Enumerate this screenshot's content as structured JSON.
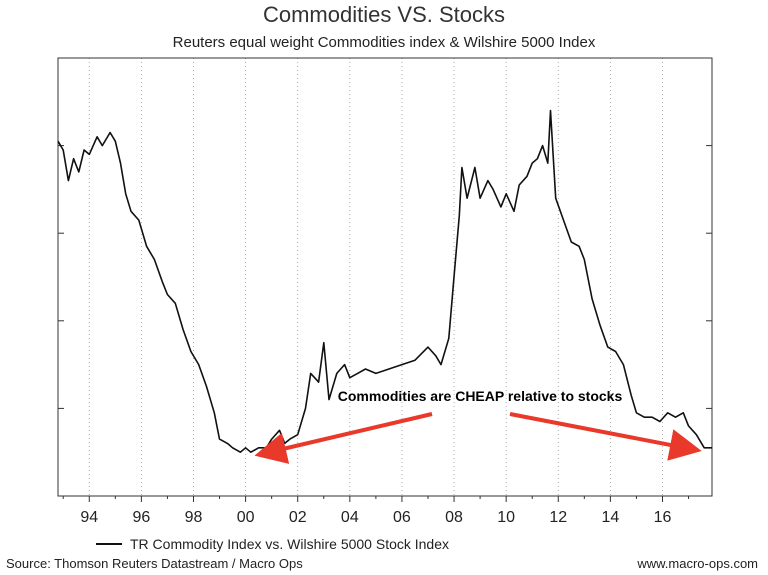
{
  "chart_data": {
    "type": "line",
    "title": "Commodities VS. Stocks",
    "subtitle": "Reuters equal weight Commodities index & Wilshire 5000 Index",
    "xlabel": "",
    "ylabel": "",
    "xlim": [
      1992.8,
      2017.9
    ],
    "ylim": [
      0,
      100
    ],
    "grid": "vertical dotted",
    "x_ticks": [
      1994,
      1996,
      1998,
      2000,
      2002,
      2004,
      2006,
      2008,
      2010,
      2012,
      2014,
      2016
    ],
    "x_tick_labels": [
      "94",
      "96",
      "98",
      "00",
      "02",
      "04",
      "06",
      "08",
      "10",
      "12",
      "14",
      "16"
    ],
    "legend_position": "bottom-left",
    "series": [
      {
        "name": "TR Commodity Index vs. Wilshire 5000 Stock Index",
        "color": "#111111",
        "x": [
          1992.8,
          1993.0,
          1993.2,
          1993.4,
          1993.6,
          1993.8,
          1994.0,
          1994.3,
          1994.5,
          1994.8,
          1995.0,
          1995.2,
          1995.4,
          1995.6,
          1995.9,
          1996.2,
          1996.5,
          1996.8,
          1997.0,
          1997.3,
          1997.6,
          1997.9,
          1998.2,
          1998.5,
          1998.8,
          1999.0,
          1999.3,
          1999.5,
          1999.8,
          2000.0,
          2000.2,
          2000.5,
          2000.8,
          2001.0,
          2001.3,
          2001.5,
          2001.7,
          2002.0,
          2002.3,
          2002.5,
          2002.8,
          2003.0,
          2003.2,
          2003.5,
          2003.8,
          2004.0,
          2004.3,
          2004.6,
          2005.0,
          2005.5,
          2006.0,
          2006.5,
          2007.0,
          2007.3,
          2007.5,
          2007.8,
          2008.0,
          2008.2,
          2008.3,
          2008.5,
          2008.8,
          2009.0,
          2009.3,
          2009.5,
          2009.8,
          2010.0,
          2010.3,
          2010.5,
          2010.8,
          2011.0,
          2011.2,
          2011.4,
          2011.6,
          2011.7,
          2011.9,
          2012.2,
          2012.5,
          2012.8,
          2013.0,
          2013.3,
          2013.6,
          2013.9,
          2014.2,
          2014.5,
          2014.8,
          2015.0,
          2015.3,
          2015.6,
          2015.9,
          2016.2,
          2016.5,
          2016.8,
          2017.0,
          2017.3,
          2017.6,
          2017.9
        ],
        "values": [
          81,
          79,
          72,
          77,
          74,
          79,
          78,
          82,
          80,
          83,
          81,
          76,
          69,
          65,
          63,
          57,
          54,
          49,
          46,
          44,
          38,
          33,
          30,
          25,
          19,
          13,
          12,
          11,
          10,
          11,
          10,
          11,
          11,
          13,
          15,
          12,
          13,
          14,
          20,
          28,
          26,
          35,
          22,
          28,
          30,
          27,
          28,
          29,
          28,
          29,
          30,
          31,
          34,
          32,
          30,
          36,
          50,
          64,
          75,
          68,
          75,
          68,
          72,
          70,
          66,
          69,
          65,
          71,
          73,
          76,
          77,
          80,
          76,
          88,
          68,
          63,
          58,
          57,
          54,
          45,
          39,
          34,
          33,
          30,
          23,
          19,
          18,
          18,
          17,
          19,
          18,
          19,
          16,
          14,
          11,
          11
        ]
      }
    ],
    "annotations": [
      {
        "text": "Commodities are CHEAP relative to stocks"
      }
    ]
  },
  "legend": {
    "label": "TR Commodity Index vs. Wilshire 5000 Stock Index"
  },
  "footer": {
    "source": "Source: Thomson Reuters Datastream / Macro Ops",
    "website": "www.macro-ops.com"
  },
  "colors": {
    "line": "#111111",
    "arrow": "#e8392a",
    "axis": "#333333",
    "grid": "#999999"
  }
}
